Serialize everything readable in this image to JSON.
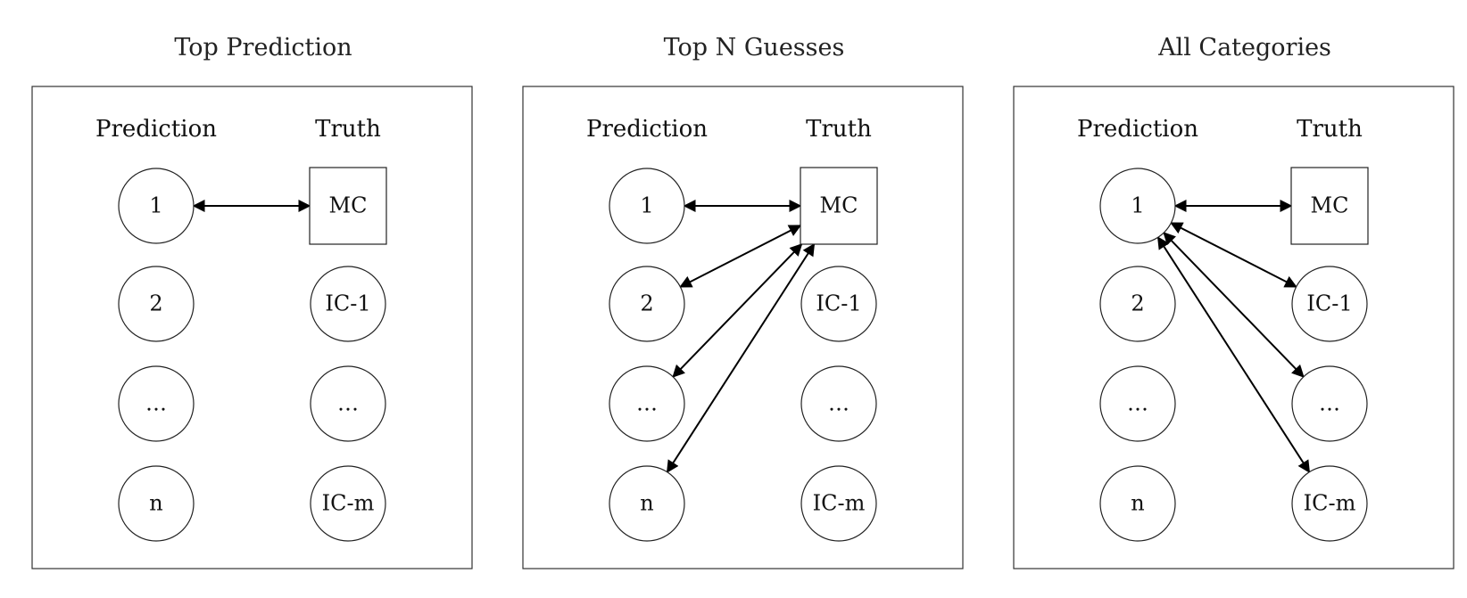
{
  "panels": [
    {
      "title": "Top Prediction",
      "prediction_header": "Prediction",
      "truth_header": "Truth",
      "predictions": [
        "1",
        "2",
        "…",
        "n"
      ],
      "truths": [
        "MC",
        "IC-1",
        "…",
        "IC-m"
      ],
      "connections": [
        [
          "pred:0",
          "truth:0"
        ]
      ]
    },
    {
      "title": "Top N Guesses",
      "prediction_header": "Prediction",
      "truth_header": "Truth",
      "predictions": [
        "1",
        "2",
        "…",
        "n"
      ],
      "truths": [
        "MC",
        "IC-1",
        "…",
        "IC-m"
      ],
      "connections": [
        [
          "pred:0",
          "truth:0"
        ],
        [
          "pred:1",
          "truth:0"
        ],
        [
          "pred:2",
          "truth:0"
        ],
        [
          "pred:3",
          "truth:0"
        ]
      ]
    },
    {
      "title": "All Categories",
      "prediction_header": "Prediction",
      "truth_header": "Truth",
      "predictions": [
        "1",
        "2",
        "…",
        "n"
      ],
      "truths": [
        "MC",
        "IC-1",
        "…",
        "IC-m"
      ],
      "connections": [
        [
          "pred:0",
          "truth:0"
        ],
        [
          "pred:0",
          "truth:1"
        ],
        [
          "pred:0",
          "truth:2"
        ],
        [
          "pred:0",
          "truth:3"
        ]
      ]
    }
  ]
}
